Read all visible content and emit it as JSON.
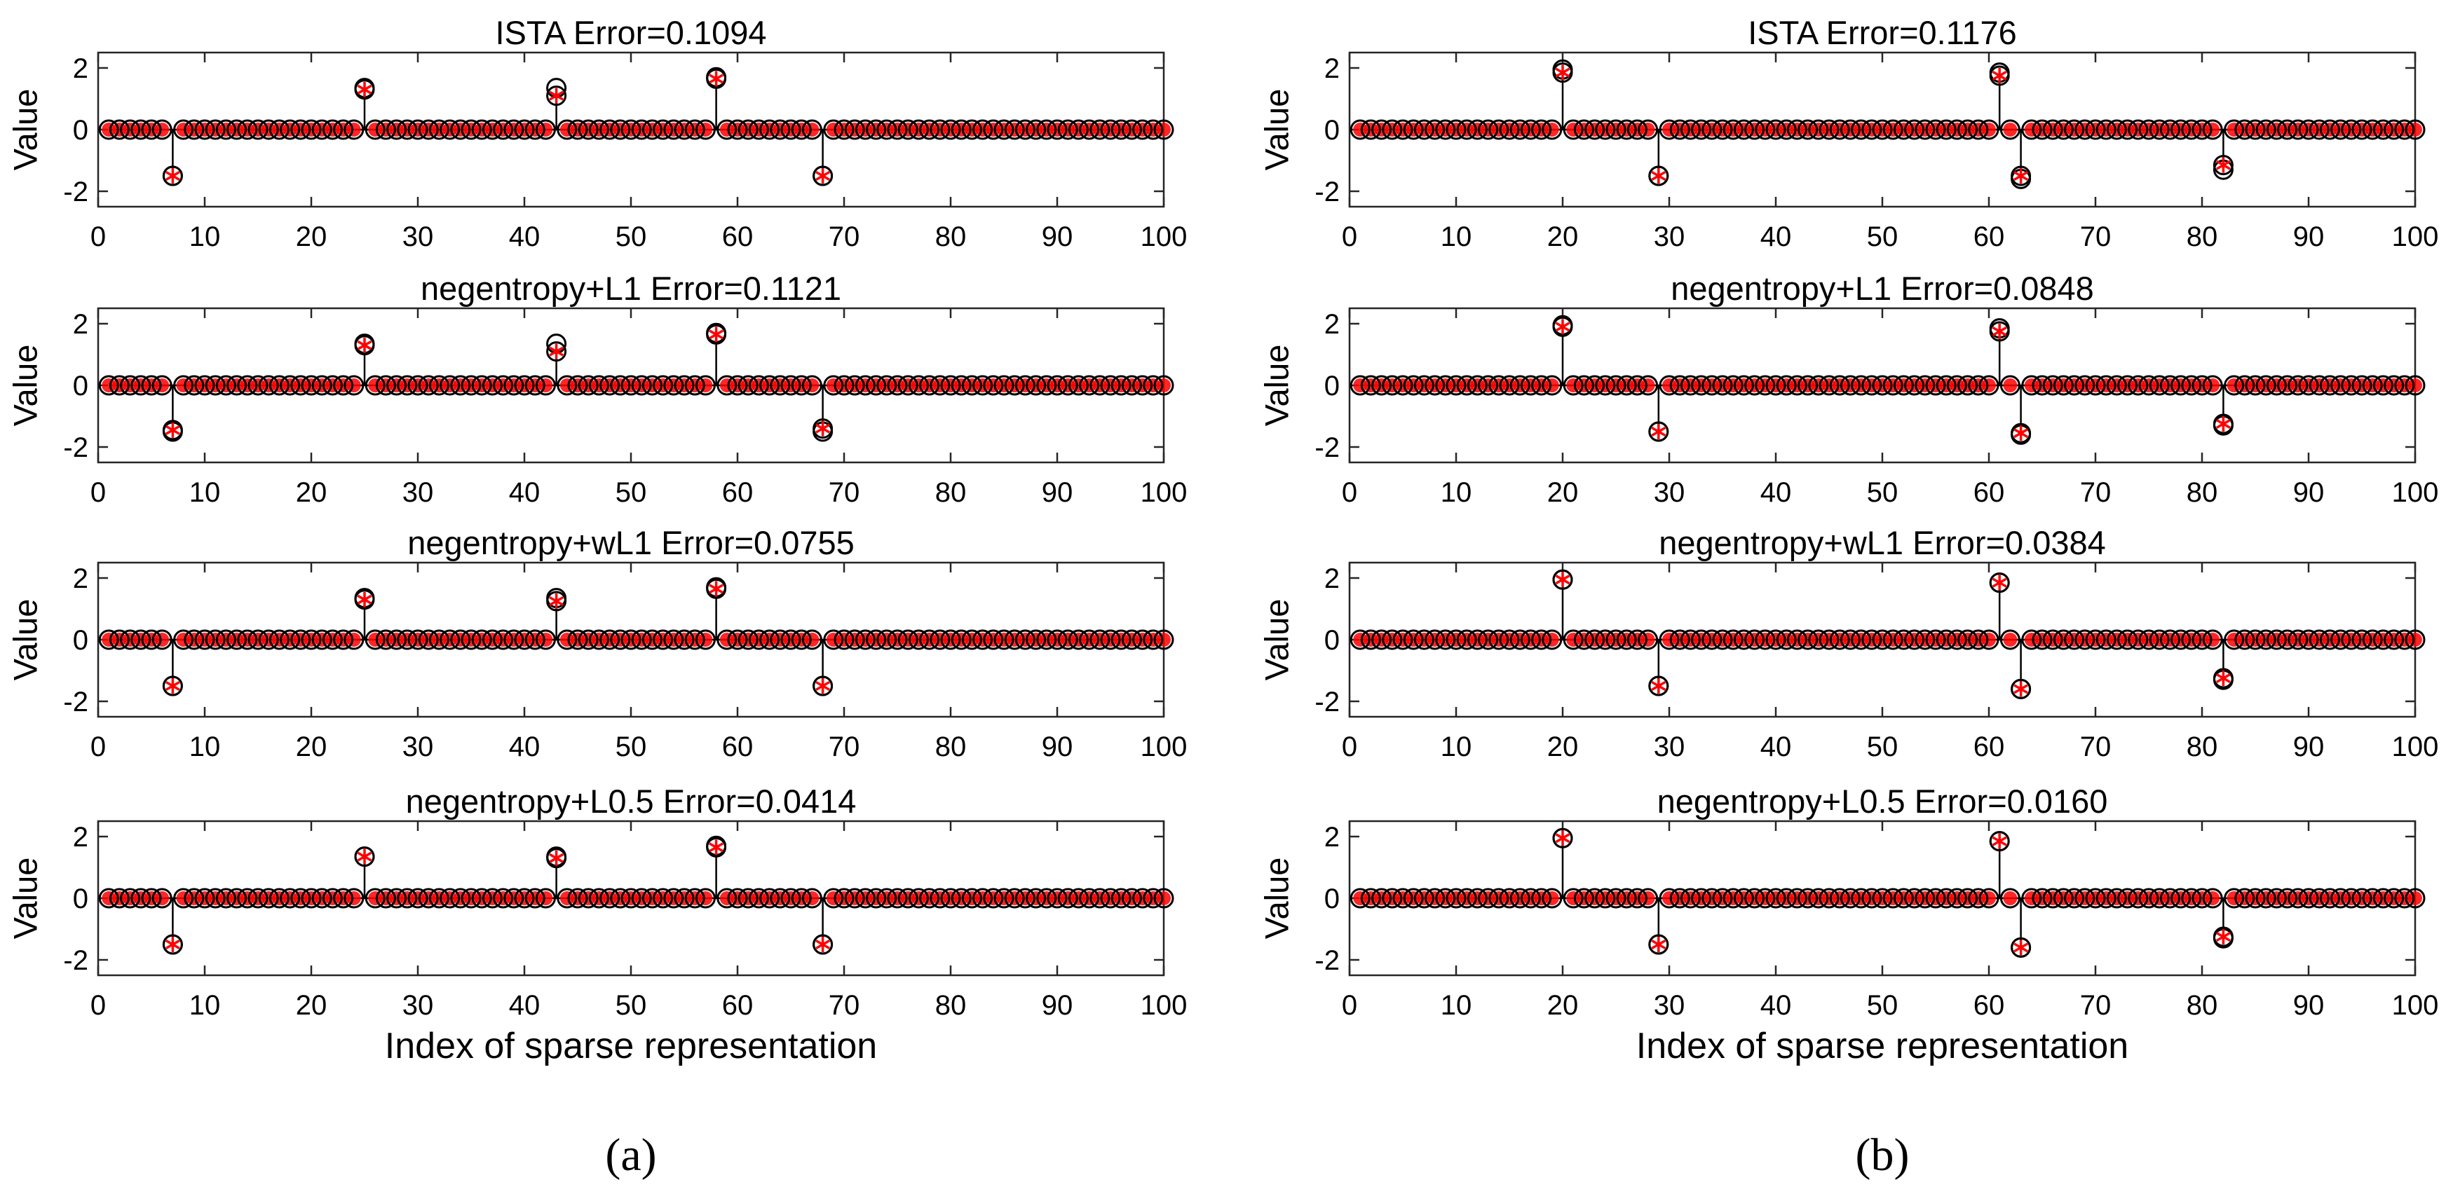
{
  "figure": {
    "xlabel": "Index of sparse representation",
    "ylabel": "Value",
    "xticks": [
      0,
      10,
      20,
      30,
      40,
      50,
      60,
      70,
      80,
      90,
      100
    ],
    "yticks": [
      -2,
      0,
      2
    ],
    "xlim": [
      0,
      100
    ],
    "ylim": [
      -2.5,
      2.5
    ],
    "marker_colors": {
      "original": "#000000",
      "recovered": "#ff0000"
    }
  },
  "chart_data": [
    {
      "type": "scatter",
      "panel": "a",
      "label": "(a)",
      "n": 100,
      "true_signal": [
        {
          "index": 7,
          "value": -1.5
        },
        {
          "index": 25,
          "value": 1.35
        },
        {
          "index": 43,
          "value": 1.35
        },
        {
          "index": 58,
          "value": 1.7
        },
        {
          "index": 68,
          "value": -1.5
        }
      ],
      "subplots": [
        {
          "title": "ISTA  Error=0.1094",
          "method": "ISTA",
          "error": 0.1094,
          "recovered": [
            {
              "index": 7,
              "value": -1.5
            },
            {
              "index": 25,
              "value": 1.3
            },
            {
              "index": 43,
              "value": 1.1
            },
            {
              "index": 58,
              "value": 1.65
            },
            {
              "index": 68,
              "value": -1.5
            }
          ]
        },
        {
          "title": "negentropy+L1  Error=0.1121",
          "method": "negentropy+L1",
          "error": 0.1121,
          "recovered": [
            {
              "index": 7,
              "value": -1.45
            },
            {
              "index": 25,
              "value": 1.3
            },
            {
              "index": 43,
              "value": 1.1
            },
            {
              "index": 58,
              "value": 1.65
            },
            {
              "index": 68,
              "value": -1.4
            }
          ]
        },
        {
          "title": "negentropy+wL1  Error=0.0755",
          "method": "negentropy+wL1",
          "error": 0.0755,
          "recovered": [
            {
              "index": 7,
              "value": -1.5
            },
            {
              "index": 25,
              "value": 1.3
            },
            {
              "index": 43,
              "value": 1.25
            },
            {
              "index": 58,
              "value": 1.65
            },
            {
              "index": 68,
              "value": -1.5
            }
          ]
        },
        {
          "title": "negentropy+L0.5  Error=0.0414",
          "method": "negentropy+L0.5",
          "error": 0.0414,
          "recovered": [
            {
              "index": 7,
              "value": -1.5
            },
            {
              "index": 25,
              "value": 1.35
            },
            {
              "index": 43,
              "value": 1.3
            },
            {
              "index": 58,
              "value": 1.65
            },
            {
              "index": 68,
              "value": -1.5
            }
          ]
        }
      ]
    },
    {
      "type": "scatter",
      "panel": "b",
      "label": "(b)",
      "n": 100,
      "true_signal": [
        {
          "index": 20,
          "value": 1.95
        },
        {
          "index": 29,
          "value": -1.5
        },
        {
          "index": 61,
          "value": 1.85
        },
        {
          "index": 63,
          "value": -1.6
        },
        {
          "index": 82,
          "value": -1.3
        }
      ],
      "subplots": [
        {
          "title": "ISTA  Error=0.1176",
          "method": "ISTA",
          "error": 0.1176,
          "recovered": [
            {
              "index": 20,
              "value": 1.85
            },
            {
              "index": 29,
              "value": -1.5
            },
            {
              "index": 61,
              "value": 1.75
            },
            {
              "index": 63,
              "value": -1.5
            },
            {
              "index": 82,
              "value": -1.15
            }
          ]
        },
        {
          "title": "negentropy+L1  Error=0.0848",
          "method": "negentropy+L1",
          "error": 0.0848,
          "recovered": [
            {
              "index": 20,
              "value": 1.9
            },
            {
              "index": 29,
              "value": -1.5
            },
            {
              "index": 61,
              "value": 1.75
            },
            {
              "index": 63,
              "value": -1.55
            },
            {
              "index": 82,
              "value": -1.25
            }
          ]
        },
        {
          "title": "negentropy+wL1  Error=0.0384",
          "method": "negentropy+wL1",
          "error": 0.0384,
          "recovered": [
            {
              "index": 20,
              "value": 1.95
            },
            {
              "index": 29,
              "value": -1.5
            },
            {
              "index": 61,
              "value": 1.85
            },
            {
              "index": 63,
              "value": -1.6
            },
            {
              "index": 82,
              "value": -1.25
            }
          ]
        },
        {
          "title": "negentropy+L0.5  Error=0.0160",
          "method": "negentropy+L0.5",
          "error": 0.016,
          "recovered": [
            {
              "index": 20,
              "value": 1.95
            },
            {
              "index": 29,
              "value": -1.5
            },
            {
              "index": 61,
              "value": 1.85
            },
            {
              "index": 63,
              "value": -1.6
            },
            {
              "index": 82,
              "value": -1.25
            }
          ]
        }
      ]
    }
  ]
}
